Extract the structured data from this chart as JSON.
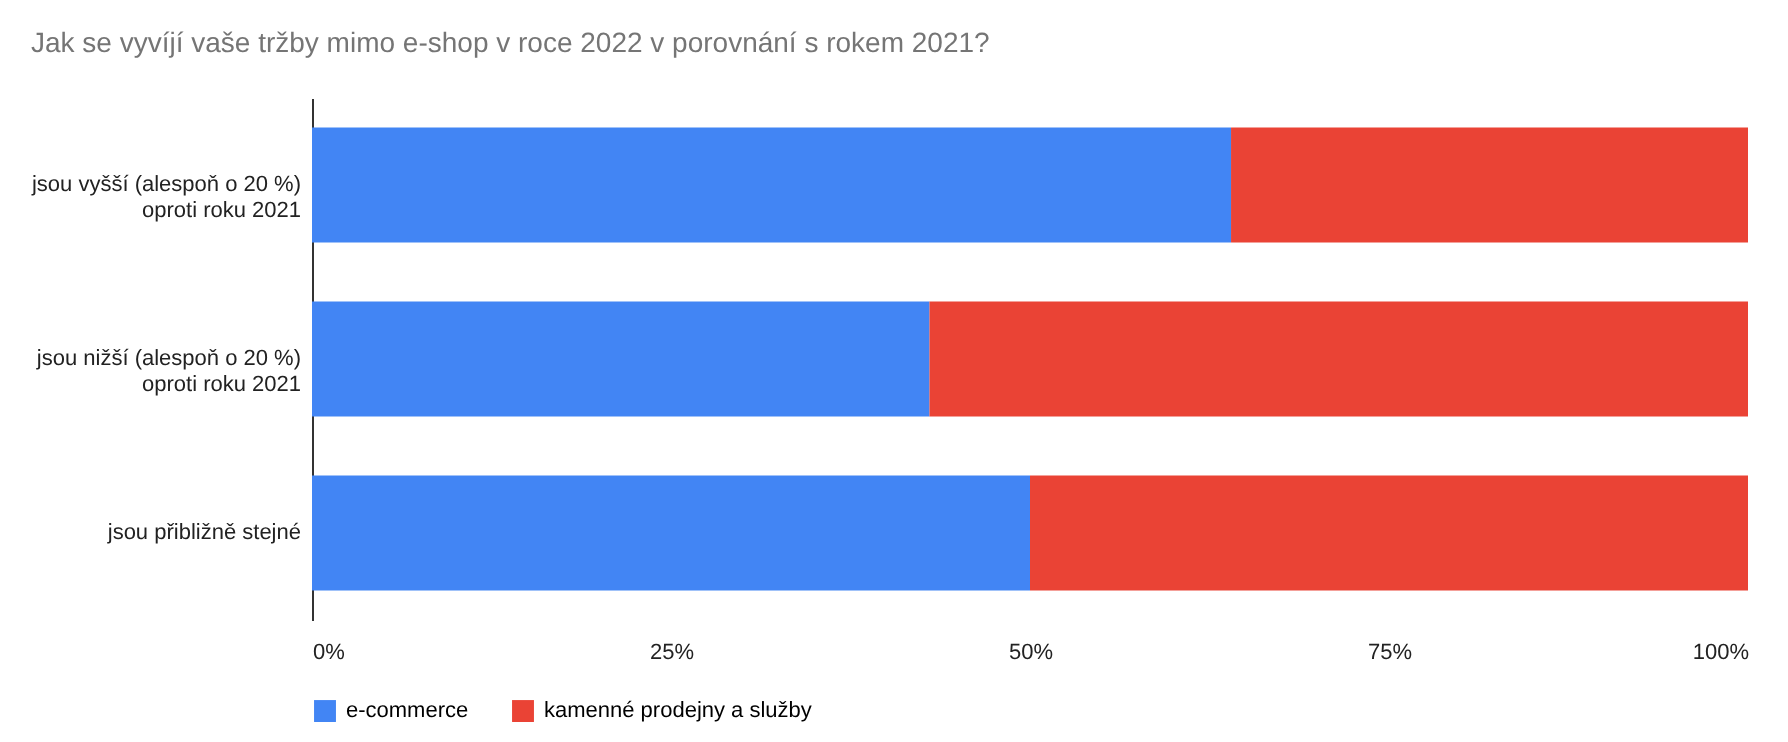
{
  "chart_data": {
    "type": "bar",
    "orientation": "horizontal",
    "stacked": true,
    "title": "Jak se vyvíjí vaše tržby mimo e-shop v roce 2022 v porovnání s rokem 2021?",
    "categories": [
      "jsou vyšší (alespoň o 20 %)\noproti roku 2021",
      "jsou nižší (alespoň o 20 %)\noproti roku 2021",
      "jsou přibližně stejné"
    ],
    "series": [
      {
        "name": "e-commerce",
        "color": "#4285f4",
        "values": [
          64,
          43,
          50
        ]
      },
      {
        "name": "kamenné prodejny a služby",
        "color": "#ea4335",
        "values": [
          36,
          57,
          50
        ]
      }
    ],
    "xlim": [
      0,
      100
    ],
    "xticks": [
      {
        "value": 0,
        "label": "0%"
      },
      {
        "value": 25,
        "label": "25%"
      },
      {
        "value": 50,
        "label": "50%"
      },
      {
        "value": 75,
        "label": "75%"
      },
      {
        "value": 100,
        "label": "100%"
      }
    ],
    "grid": false,
    "legend": "bottom"
  }
}
